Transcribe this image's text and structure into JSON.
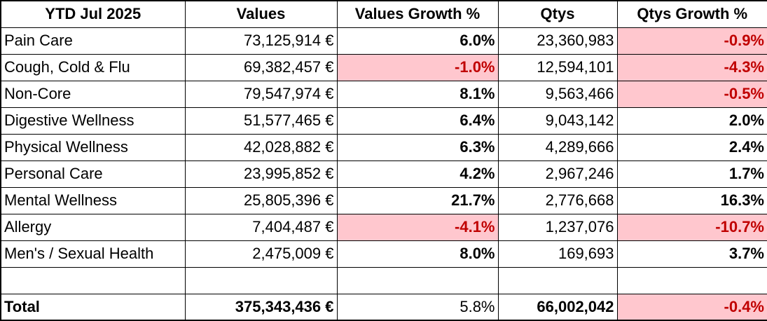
{
  "table": {
    "header": [
      "YTD Jul 2025",
      "Values",
      "Values Growth %",
      "Qtys",
      "Qtys Growth %"
    ],
    "rows": [
      [
        "Pain Care",
        "73,125,914 €",
        "6.0%",
        "23,360,983",
        "-0.9%"
      ],
      [
        "Cough, Cold & Flu",
        "69,382,457 €",
        "-1.0%",
        "12,594,101",
        "-4.3%"
      ],
      [
        "Non-Core",
        "79,547,974 €",
        "8.1%",
        "9,563,466",
        "-0.5%"
      ],
      [
        "Digestive Wellness",
        "51,577,465 €",
        "6.4%",
        "9,043,142",
        "2.0%"
      ],
      [
        "Physical Wellness",
        "42,028,882 €",
        "6.3%",
        "4,289,666",
        "2.4%"
      ],
      [
        "Personal Care",
        "23,995,852 €",
        "4.2%",
        "2,967,246",
        "1.7%"
      ],
      [
        "Mental Wellness",
        "25,805,396 €",
        "21.7%",
        "2,776,668",
        "16.3%"
      ],
      [
        "Allergy",
        "7,404,487 €",
        "-4.1%",
        "1,237,076",
        "-10.7%"
      ],
      [
        "Men's / Sexual Health",
        "2,475,009 €",
        "8.0%",
        "169,693",
        "3.7%"
      ]
    ],
    "total": [
      "Total",
      "375,343,436 €",
      "5.8%",
      "66,002,042",
      "-0.4%"
    ]
  }
}
